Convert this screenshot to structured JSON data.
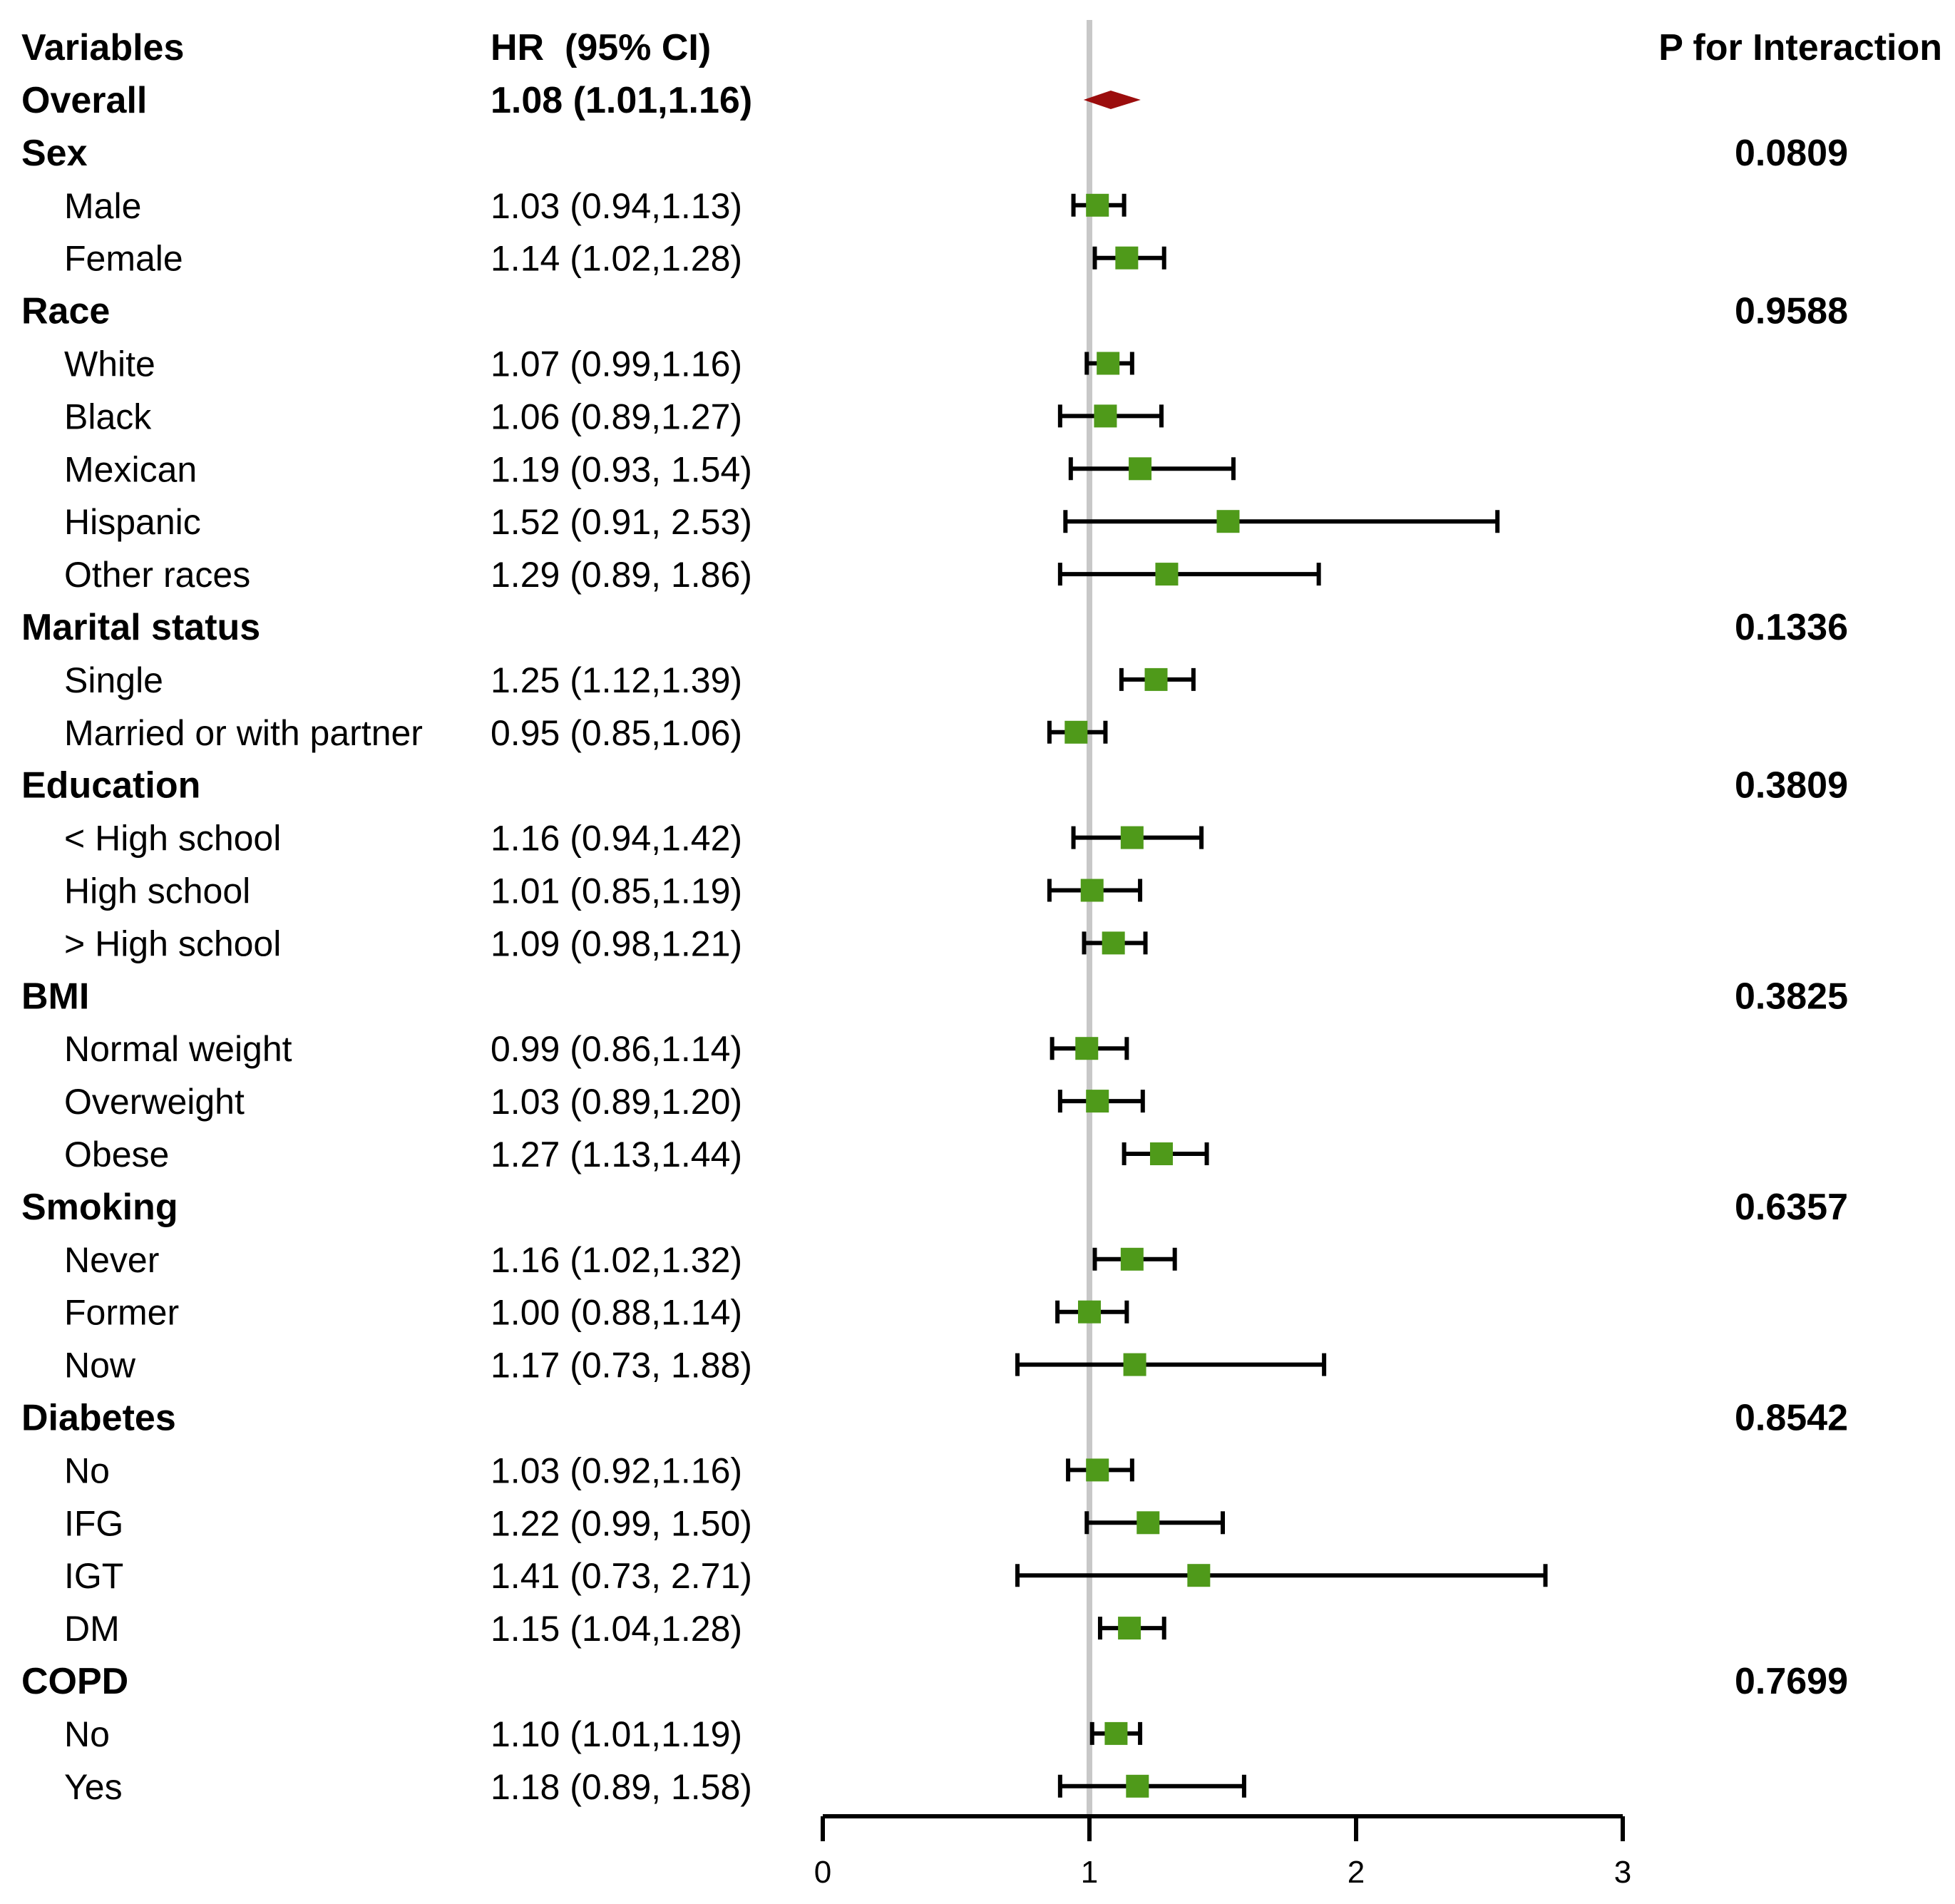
{
  "chart_data": {
    "type": "forest",
    "title": "",
    "headers": {
      "variables": "Variables",
      "hr": "HR  (95% CI)",
      "p": "P for Interaction"
    },
    "x_axis": {
      "range": [
        0,
        3
      ],
      "ticks": [
        "0",
        "1",
        "2",
        "3"
      ],
      "reference_line": 1
    },
    "colors": {
      "marker": "#4f9a1a",
      "overall": "#9b0d0d",
      "reference": "#c8c8c8",
      "line": "#000000"
    },
    "rows": [
      {
        "kind": "overall",
        "label": "Overall",
        "hr_text": "1.08 (1.01,1.16)",
        "hr": 1.08,
        "lo": 1.01,
        "hi": 1.16,
        "p": ""
      },
      {
        "kind": "group",
        "label": "Sex",
        "hr_text": "",
        "p": "0.0809"
      },
      {
        "kind": "sub",
        "label": "Male",
        "hr_text": "1.03 (0.94,1.13)",
        "hr": 1.03,
        "lo": 0.94,
        "hi": 1.13
      },
      {
        "kind": "sub",
        "label": "Female",
        "hr_text": "1.14 (1.02,1.28)",
        "hr": 1.14,
        "lo": 1.02,
        "hi": 1.28
      },
      {
        "kind": "group",
        "label": "Race",
        "hr_text": "",
        "p": "0.9588"
      },
      {
        "kind": "sub",
        "label": "White",
        "hr_text": "1.07 (0.99,1.16)",
        "hr": 1.07,
        "lo": 0.99,
        "hi": 1.16
      },
      {
        "kind": "sub",
        "label": "Black",
        "hr_text": "1.06 (0.89,1.27)",
        "hr": 1.06,
        "lo": 0.89,
        "hi": 1.27
      },
      {
        "kind": "sub",
        "label": "Mexican",
        "hr_text": "1.19 (0.93, 1.54)",
        "hr": 1.19,
        "lo": 0.93,
        "hi": 1.54
      },
      {
        "kind": "sub",
        "label": "Hispanic",
        "hr_text": "1.52 (0.91, 2.53)",
        "hr": 1.52,
        "lo": 0.91,
        "hi": 2.53
      },
      {
        "kind": "sub",
        "label": "Other races",
        "hr_text": "1.29 (0.89, 1.86)",
        "hr": 1.29,
        "lo": 0.89,
        "hi": 1.86
      },
      {
        "kind": "group",
        "label": "Marital status",
        "hr_text": "",
        "p": "0.1336"
      },
      {
        "kind": "sub",
        "label": "Single",
        "hr_text": "1.25 (1.12,1.39)",
        "hr": 1.25,
        "lo": 1.12,
        "hi": 1.39
      },
      {
        "kind": "sub",
        "label": "Married or with partner",
        "hr_text": "0.95 (0.85,1.06)",
        "hr": 0.95,
        "lo": 0.85,
        "hi": 1.06
      },
      {
        "kind": "group",
        "label": "Education",
        "hr_text": "",
        "p": "0.3809"
      },
      {
        "kind": "sub",
        "label": "< High school",
        "hr_text": "1.16 (0.94,1.42)",
        "hr": 1.16,
        "lo": 0.94,
        "hi": 1.42
      },
      {
        "kind": "sub",
        "label": "High school",
        "hr_text": "1.01 (0.85,1.19)",
        "hr": 1.01,
        "lo": 0.85,
        "hi": 1.19
      },
      {
        "kind": "sub",
        "label": "> High school",
        "hr_text": "1.09 (0.98,1.21)",
        "hr": 1.09,
        "lo": 0.98,
        "hi": 1.21
      },
      {
        "kind": "group",
        "label": "BMI",
        "hr_text": "",
        "p": "0.3825"
      },
      {
        "kind": "sub",
        "label": "Normal weight",
        "hr_text": "0.99 (0.86,1.14)",
        "hr": 0.99,
        "lo": 0.86,
        "hi": 1.14
      },
      {
        "kind": "sub",
        "label": "Overweight",
        "hr_text": "1.03 (0.89,1.20)",
        "hr": 1.03,
        "lo": 0.89,
        "hi": 1.2
      },
      {
        "kind": "sub",
        "label": "Obese",
        "hr_text": "1.27 (1.13,1.44)",
        "hr": 1.27,
        "lo": 1.13,
        "hi": 1.44
      },
      {
        "kind": "group",
        "label": "Smoking",
        "hr_text": "",
        "p": "0.6357"
      },
      {
        "kind": "sub",
        "label": "Never",
        "hr_text": "1.16 (1.02,1.32)",
        "hr": 1.16,
        "lo": 1.02,
        "hi": 1.32
      },
      {
        "kind": "sub",
        "label": "Former",
        "hr_text": "1.00 (0.88,1.14)",
        "hr": 1.0,
        "lo": 0.88,
        "hi": 1.14
      },
      {
        "kind": "sub",
        "label": "Now",
        "hr_text": "1.17 (0.73, 1.88)",
        "hr": 1.17,
        "lo": 0.73,
        "hi": 1.88
      },
      {
        "kind": "group",
        "label": "Diabetes",
        "hr_text": "",
        "p": "0.8542"
      },
      {
        "kind": "sub",
        "label": "No",
        "hr_text": "1.03 (0.92,1.16)",
        "hr": 1.03,
        "lo": 0.92,
        "hi": 1.16
      },
      {
        "kind": "sub",
        "label": "IFG",
        "hr_text": "1.22 (0.99, 1.50)",
        "hr": 1.22,
        "lo": 0.99,
        "hi": 1.5
      },
      {
        "kind": "sub",
        "label": "IGT",
        "hr_text": "1.41 (0.73, 2.71)",
        "hr": 1.41,
        "lo": 0.73,
        "hi": 2.71
      },
      {
        "kind": "sub",
        "label": "DM",
        "hr_text": "1.15 (1.04,1.28)",
        "hr": 1.15,
        "lo": 1.04,
        "hi": 1.28
      },
      {
        "kind": "group",
        "label": "COPD",
        "hr_text": "",
        "p": "0.7699"
      },
      {
        "kind": "sub",
        "label": "No",
        "hr_text": "1.10 (1.01,1.19)",
        "hr": 1.1,
        "lo": 1.01,
        "hi": 1.19
      },
      {
        "kind": "sub",
        "label": "Yes",
        "hr_text": "1.18 (0.89, 1.58)",
        "hr": 1.18,
        "lo": 0.89,
        "hi": 1.58
      }
    ]
  }
}
